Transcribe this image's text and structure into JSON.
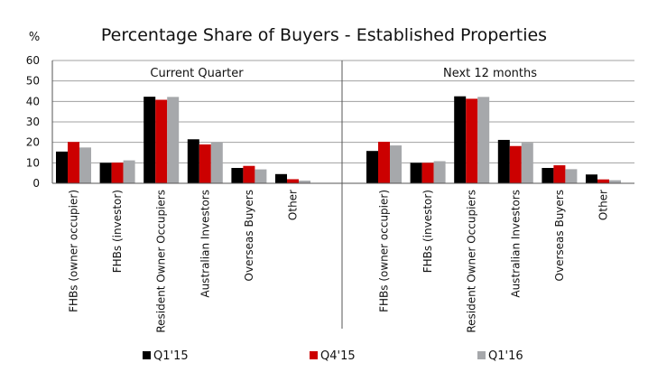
{
  "chart_data": {
    "type": "bar",
    "title": "Percentage Share of Buyers - Established Properties",
    "ylabel": "%",
    "ylim": [
      0,
      60
    ],
    "yticks": [
      0,
      10,
      20,
      30,
      40,
      50,
      60
    ],
    "gridlines": true,
    "legend_position": "bottom",
    "categories": [
      "FHBs (owner occupier)",
      "FHBs (investor)",
      "Resident Owner Occupiers",
      "Australian Investors",
      "Overseas Buyers",
      "Other"
    ],
    "series_meta": [
      {
        "name": "Q1'15",
        "color": "#000000"
      },
      {
        "name": "Q4'15",
        "color": "#cc0000"
      },
      {
        "name": "Q1'16",
        "color": "#a6a8ab"
      }
    ],
    "panels": [
      {
        "label": "Current Quarter",
        "values": [
          [
            15.5,
            20.2,
            17.5
          ],
          [
            10.0,
            10.1,
            11.2
          ],
          [
            42.3,
            40.8,
            42.2
          ],
          [
            21.5,
            19.0,
            20.0
          ],
          [
            7.5,
            8.5,
            6.8
          ],
          [
            4.5,
            2.0,
            1.3
          ]
        ]
      },
      {
        "label": "Next 12 months",
        "values": [
          [
            15.8,
            20.3,
            18.5
          ],
          [
            10.0,
            10.0,
            10.8
          ],
          [
            42.5,
            41.3,
            42.2
          ],
          [
            21.2,
            18.2,
            19.8
          ],
          [
            7.5,
            8.8,
            6.9
          ],
          [
            4.3,
            1.9,
            1.5
          ]
        ]
      }
    ]
  }
}
